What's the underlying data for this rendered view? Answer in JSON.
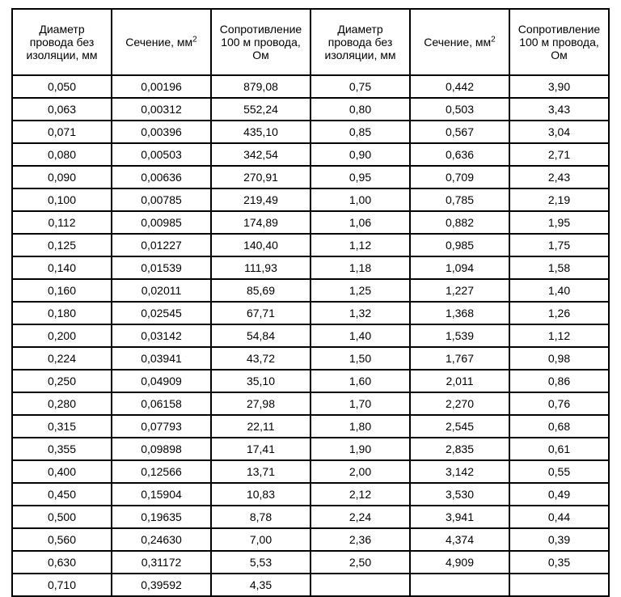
{
  "table": {
    "type": "table",
    "border_color": "#000000",
    "background_color": "#ffffff",
    "text_color": "#000000",
    "font_family": "Arial",
    "header_fontsize": 14,
    "cell_fontsize": 14,
    "columns": [
      {
        "key": "d1",
        "label_html": "Диаметр<br>провода без<br>изоляции, мм",
        "width_pct": 16.6
      },
      {
        "key": "s1",
        "label_html": "Сечение, мм<sup>2</sup>",
        "width_pct": 16.6
      },
      {
        "key": "r1",
        "label_html": "Сопротивление<br>100 м провода,<br>Ом",
        "width_pct": 16.6
      },
      {
        "key": "d2",
        "label_html": "Диаметр<br>провода без<br>изоляции, мм",
        "width_pct": 16.6
      },
      {
        "key": "s2",
        "label_html": "Сечение, мм<sup>2</sup>",
        "width_pct": 16.6
      },
      {
        "key": "r2",
        "label_html": "Сопротивление<br>100 м провода,<br>Ом",
        "width_pct": 16.6
      }
    ],
    "rows": [
      [
        "0,050",
        "0,00196",
        "879,08",
        "0,75",
        "0,442",
        "3,90"
      ],
      [
        "0,063",
        "0,00312",
        "552,24",
        "0,80",
        "0,503",
        "3,43"
      ],
      [
        "0,071",
        "0,00396",
        "435,10",
        "0,85",
        "0,567",
        "3,04"
      ],
      [
        "0,080",
        "0,00503",
        "342,54",
        "0,90",
        "0,636",
        "2,71"
      ],
      [
        "0,090",
        "0,00636",
        "270,91",
        "0,95",
        "0,709",
        "2,43"
      ],
      [
        "0,100",
        "0,00785",
        "219,49",
        "1,00",
        "0,785",
        "2,19"
      ],
      [
        "0,112",
        "0,00985",
        "174,89",
        "1,06",
        "0,882",
        "1,95"
      ],
      [
        "0,125",
        "0,01227",
        "140,40",
        "1,12",
        "0,985",
        "1,75"
      ],
      [
        "0,140",
        "0,01539",
        "111,93",
        "1,18",
        "1,094",
        "1,58"
      ],
      [
        "0,160",
        "0,02011",
        "85,69",
        "1,25",
        "1,227",
        "1,40"
      ],
      [
        "0,180",
        "0,02545",
        "67,71",
        "1,32",
        "1,368",
        "1,26"
      ],
      [
        "0,200",
        "0,03142",
        "54,84",
        "1,40",
        "1,539",
        "1,12"
      ],
      [
        "0,224",
        "0,03941",
        "43,72",
        "1,50",
        "1,767",
        "0,98"
      ],
      [
        "0,250",
        "0,04909",
        "35,10",
        "1,60",
        "2,011",
        "0,86"
      ],
      [
        "0,280",
        "0,06158",
        "27,98",
        "1,70",
        "2,270",
        "0,76"
      ],
      [
        "0,315",
        "0,07793",
        "22,11",
        "1,80",
        "2,545",
        "0,68"
      ],
      [
        "0,355",
        "0,09898",
        "17,41",
        "1,90",
        "2,835",
        "0,61"
      ],
      [
        "0,400",
        "0,12566",
        "13,71",
        "2,00",
        "3,142",
        "0,55"
      ],
      [
        "0,450",
        "0,15904",
        "10,83",
        "2,12",
        "3,530",
        "0,49"
      ],
      [
        "0,500",
        "0,19635",
        "8,78",
        "2,24",
        "3,941",
        "0,44"
      ],
      [
        "0,560",
        "0,24630",
        "7,00",
        "2,36",
        "4,374",
        "0,39"
      ],
      [
        "0,630",
        "0,31172",
        "5,53",
        "2,50",
        "4,909",
        "0,35"
      ],
      [
        "0,710",
        "0,39592",
        "4,35",
        "",
        "",
        ""
      ]
    ]
  }
}
